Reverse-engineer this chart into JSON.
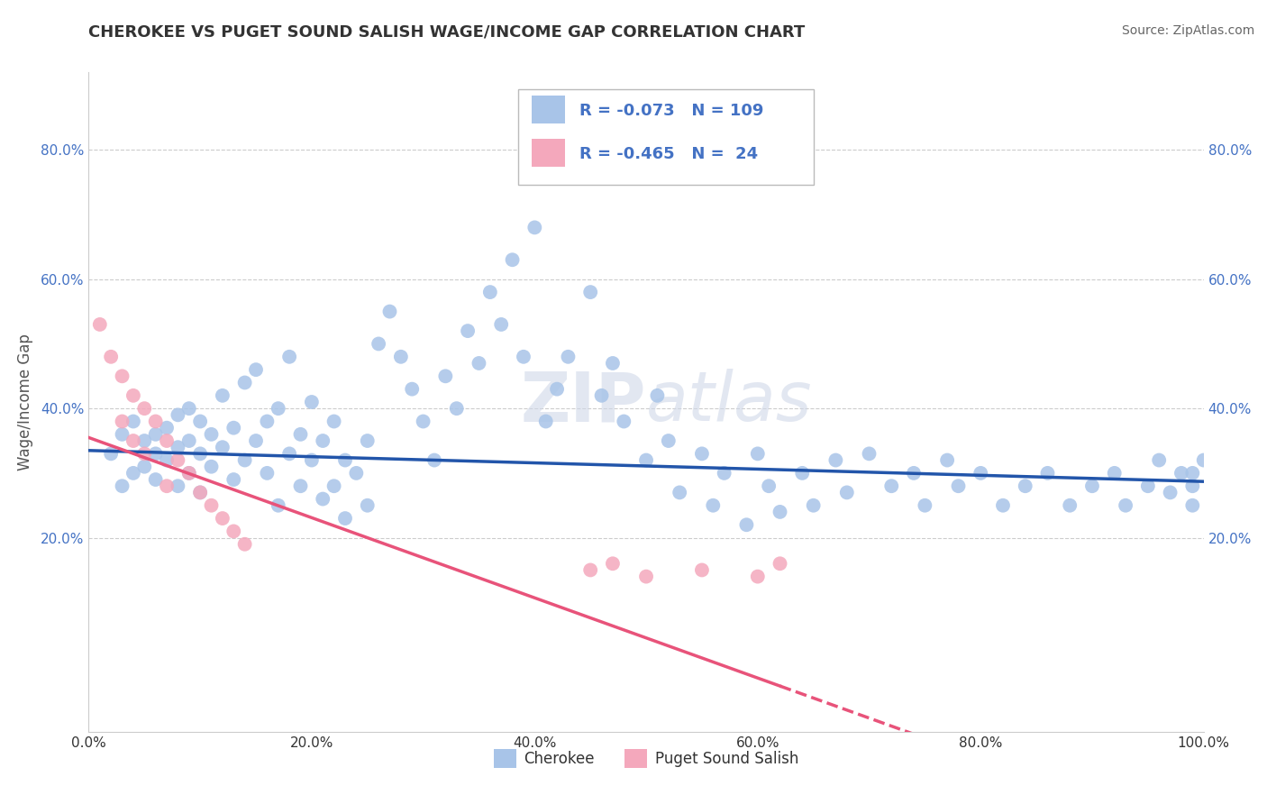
{
  "title": "CHEROKEE VS PUGET SOUND SALISH WAGE/INCOME GAP CORRELATION CHART",
  "source": "Source: ZipAtlas.com",
  "ylabel": "Wage/Income Gap",
  "xlim": [
    0.0,
    1.0
  ],
  "ylim": [
    -0.1,
    0.92
  ],
  "xticks": [
    0.0,
    0.2,
    0.4,
    0.6,
    0.8,
    1.0
  ],
  "xticklabels": [
    "0.0%",
    "20.0%",
    "40.0%",
    "60.0%",
    "80.0%",
    "100.0%"
  ],
  "ytick_positions": [
    0.2,
    0.4,
    0.6,
    0.8
  ],
  "yticklabels": [
    "20.0%",
    "40.0%",
    "60.0%",
    "80.0%"
  ],
  "grid_color": "#cccccc",
  "background_color": "#ffffff",
  "cherokee_color": "#a8c4e8",
  "puget_color": "#f4a8bc",
  "cherokee_line_color": "#2255aa",
  "puget_line_color": "#e8537a",
  "R_cherokee": -0.073,
  "N_cherokee": 109,
  "R_puget": -0.465,
  "N_puget": 24,
  "watermark": "ZIPatlas",
  "ch_intercept": 0.335,
  "ch_slope": -0.048,
  "pu_intercept": 0.355,
  "pu_slope": -0.62,
  "cherokee_x": [
    0.02,
    0.03,
    0.03,
    0.04,
    0.04,
    0.05,
    0.05,
    0.06,
    0.06,
    0.06,
    0.07,
    0.07,
    0.08,
    0.08,
    0.08,
    0.09,
    0.09,
    0.09,
    0.1,
    0.1,
    0.1,
    0.11,
    0.11,
    0.12,
    0.12,
    0.13,
    0.13,
    0.14,
    0.14,
    0.15,
    0.15,
    0.16,
    0.16,
    0.17,
    0.17,
    0.18,
    0.18,
    0.19,
    0.19,
    0.2,
    0.2,
    0.21,
    0.21,
    0.22,
    0.22,
    0.23,
    0.23,
    0.24,
    0.25,
    0.25,
    0.26,
    0.27,
    0.28,
    0.29,
    0.3,
    0.31,
    0.32,
    0.33,
    0.34,
    0.35,
    0.36,
    0.37,
    0.38,
    0.39,
    0.4,
    0.41,
    0.42,
    0.43,
    0.45,
    0.46,
    0.47,
    0.48,
    0.5,
    0.51,
    0.52,
    0.53,
    0.55,
    0.56,
    0.57,
    0.59,
    0.6,
    0.61,
    0.62,
    0.64,
    0.65,
    0.67,
    0.68,
    0.7,
    0.72,
    0.74,
    0.75,
    0.77,
    0.78,
    0.8,
    0.82,
    0.84,
    0.86,
    0.88,
    0.9,
    0.92,
    0.93,
    0.95,
    0.96,
    0.97,
    0.98,
    0.99,
    0.99,
    0.99,
    1.0
  ],
  "cherokee_y": [
    0.33,
    0.28,
    0.36,
    0.3,
    0.38,
    0.31,
    0.35,
    0.33,
    0.29,
    0.36,
    0.32,
    0.37,
    0.28,
    0.34,
    0.39,
    0.3,
    0.35,
    0.4,
    0.27,
    0.33,
    0.38,
    0.31,
    0.36,
    0.34,
    0.42,
    0.29,
    0.37,
    0.32,
    0.44,
    0.35,
    0.46,
    0.3,
    0.38,
    0.25,
    0.4,
    0.33,
    0.48,
    0.28,
    0.36,
    0.32,
    0.41,
    0.26,
    0.35,
    0.28,
    0.38,
    0.23,
    0.32,
    0.3,
    0.25,
    0.35,
    0.5,
    0.55,
    0.48,
    0.43,
    0.38,
    0.32,
    0.45,
    0.4,
    0.52,
    0.47,
    0.58,
    0.53,
    0.63,
    0.48,
    0.68,
    0.38,
    0.43,
    0.48,
    0.58,
    0.42,
    0.47,
    0.38,
    0.32,
    0.42,
    0.35,
    0.27,
    0.33,
    0.25,
    0.3,
    0.22,
    0.33,
    0.28,
    0.24,
    0.3,
    0.25,
    0.32,
    0.27,
    0.33,
    0.28,
    0.3,
    0.25,
    0.32,
    0.28,
    0.3,
    0.25,
    0.28,
    0.3,
    0.25,
    0.28,
    0.3,
    0.25,
    0.28,
    0.32,
    0.27,
    0.3,
    0.25,
    0.28,
    0.3,
    0.32
  ],
  "puget_x": [
    0.01,
    0.02,
    0.03,
    0.03,
    0.04,
    0.04,
    0.05,
    0.05,
    0.06,
    0.07,
    0.07,
    0.08,
    0.09,
    0.1,
    0.11,
    0.12,
    0.13,
    0.14,
    0.45,
    0.47,
    0.5,
    0.55,
    0.6,
    0.62
  ],
  "puget_y": [
    0.53,
    0.48,
    0.45,
    0.38,
    0.42,
    0.35,
    0.4,
    0.33,
    0.38,
    0.35,
    0.28,
    0.32,
    0.3,
    0.27,
    0.25,
    0.23,
    0.21,
    0.19,
    0.15,
    0.16,
    0.14,
    0.15,
    0.14,
    0.16
  ]
}
